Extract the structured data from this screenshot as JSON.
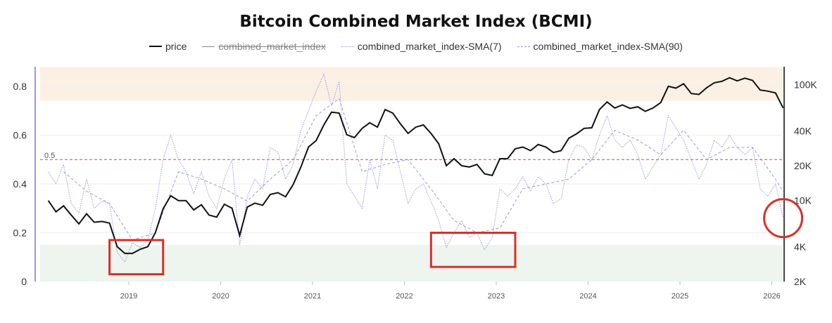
{
  "chart_data": {
    "type": "line",
    "title": "Bitcoin Combined Market Index (BCMI)",
    "legend": {
      "placement": "top",
      "entries": [
        {
          "name": "price",
          "style": "solid",
          "color": "#111111",
          "hidden": false
        },
        {
          "name": "combined_market_index",
          "style": "solid",
          "color": "#888888",
          "hidden": true
        },
        {
          "name": "combined_market_index-SMA(7)",
          "style": "dotted",
          "color": "#9b96e8",
          "hidden": false
        },
        {
          "name": "combined_market_index-SMA(90)",
          "style": "dashed",
          "color": "#9b96e8",
          "hidden": false
        }
      ]
    },
    "x_axis": {
      "ticks": [
        "2019",
        "2020",
        "2021",
        "2022",
        "2023",
        "2024",
        "2025",
        "2026"
      ],
      "range": [
        "2018-02",
        "2026-02"
      ]
    },
    "y_left": {
      "ticks": [
        "0",
        "0.2",
        "0.4",
        "0.6",
        "0.8"
      ],
      "values": [
        0,
        0.2,
        0.4,
        0.6,
        0.8
      ],
      "range": [
        0,
        0.88
      ]
    },
    "y_right": {
      "scale": "log",
      "ticks": [
        "2K",
        "4K",
        "10K",
        "20K",
        "40K",
        "100K"
      ],
      "values": [
        2000,
        4000,
        10000,
        20000,
        40000,
        100000
      ],
      "range": [
        2000,
        141000
      ]
    },
    "reference_line": {
      "value": 0.5,
      "label": "0.5",
      "color": "#c0504d",
      "style": "dashed"
    },
    "bands": [
      {
        "from": 0.74,
        "to": 0.88,
        "color": "#fbf0e3"
      },
      {
        "from": 0,
        "to": 0.15,
        "color": "#edf5ee"
      }
    ],
    "grid": true,
    "dates": [
      "2018-02",
      "2018-03",
      "2018-04",
      "2018-05",
      "2018-06",
      "2018-07",
      "2018-08",
      "2018-09",
      "2018-10",
      "2018-11",
      "2018-12",
      "2019-01",
      "2019-02",
      "2019-03",
      "2019-04",
      "2019-05",
      "2019-06",
      "2019-07",
      "2019-08",
      "2019-09",
      "2019-10",
      "2019-11",
      "2019-12",
      "2020-01",
      "2020-02",
      "2020-03",
      "2020-04",
      "2020-05",
      "2020-06",
      "2020-07",
      "2020-08",
      "2020-09",
      "2020-10",
      "2020-11",
      "2020-12",
      "2021-01",
      "2021-02",
      "2021-03",
      "2021-04",
      "2021-05",
      "2021-06",
      "2021-07",
      "2021-08",
      "2021-09",
      "2021-10",
      "2021-11",
      "2021-12",
      "2022-01",
      "2022-02",
      "2022-03",
      "2022-04",
      "2022-05",
      "2022-06",
      "2022-07",
      "2022-08",
      "2022-09",
      "2022-10",
      "2022-11",
      "2022-12",
      "2023-01",
      "2023-02",
      "2023-03",
      "2023-04",
      "2023-05",
      "2023-06",
      "2023-07",
      "2023-08",
      "2023-09",
      "2023-10",
      "2023-11",
      "2023-12",
      "2024-01",
      "2024-02",
      "2024-03",
      "2024-04",
      "2024-05",
      "2024-06",
      "2024-07",
      "2024-08",
      "2024-09",
      "2024-10",
      "2024-11",
      "2024-12",
      "2025-01",
      "2025-02",
      "2025-03",
      "2025-04",
      "2025-05",
      "2025-06",
      "2025-07",
      "2025-08",
      "2025-09",
      "2025-10",
      "2025-11",
      "2025-12",
      "2026-01",
      "2026-02"
    ],
    "price": [
      10000,
      8000,
      9000,
      7500,
      6300,
      7700,
      6500,
      6600,
      6400,
      4000,
      3500,
      3500,
      3800,
      4000,
      5300,
      8500,
      11000,
      10000,
      10000,
      8300,
      9200,
      7500,
      7200,
      9300,
      8600,
      5000,
      8800,
      9500,
      9100,
      11300,
      11700,
      10800,
      13800,
      19500,
      29000,
      33000,
      45000,
      58000,
      57000,
      37000,
      35000,
      42000,
      47000,
      43000,
      61000,
      57000,
      46000,
      38000,
      43000,
      45000,
      38000,
      31000,
      20000,
      23000,
      20000,
      19500,
      20500,
      17000,
      16500,
      23000,
      23000,
      28000,
      29000,
      27000,
      30500,
      29000,
      26000,
      27000,
      34500,
      37700,
      42000,
      42500,
      61000,
      71000,
      63000,
      67000,
      62500,
      64500,
      59000,
      63000,
      70000,
      97000,
      93500,
      102000,
      84000,
      82500,
      94000,
      104000,
      107000,
      115000,
      108000,
      114000,
      109000,
      90000,
      88000,
      85000,
      63000
    ],
    "sma7": [
      0.45,
      0.4,
      0.48,
      0.32,
      0.28,
      0.42,
      0.3,
      0.33,
      0.32,
      0.12,
      0.08,
      0.16,
      0.14,
      0.17,
      0.3,
      0.5,
      0.6,
      0.5,
      0.45,
      0.36,
      0.45,
      0.35,
      0.3,
      0.42,
      0.5,
      0.15,
      0.35,
      0.42,
      0.38,
      0.55,
      0.53,
      0.42,
      0.48,
      0.62,
      0.7,
      0.78,
      0.85,
      0.72,
      0.82,
      0.4,
      0.35,
      0.3,
      0.5,
      0.38,
      0.6,
      0.58,
      0.45,
      0.32,
      0.38,
      0.4,
      0.33,
      0.25,
      0.14,
      0.2,
      0.25,
      0.18,
      0.2,
      0.13,
      0.18,
      0.38,
      0.35,
      0.38,
      0.43,
      0.37,
      0.43,
      0.4,
      0.32,
      0.34,
      0.5,
      0.56,
      0.55,
      0.5,
      0.6,
      0.68,
      0.58,
      0.55,
      0.58,
      0.52,
      0.42,
      0.47,
      0.52,
      0.68,
      0.63,
      0.58,
      0.5,
      0.42,
      0.48,
      0.58,
      0.55,
      0.6,
      0.55,
      0.52,
      0.55,
      0.38,
      0.35,
      0.4,
      0.26
    ],
    "sma90": {
      "dates": [
        "2018-04",
        "2018-07",
        "2018-10",
        "2019-01",
        "2019-04",
        "2019-07",
        "2019-10",
        "2020-01",
        "2020-04",
        "2020-07",
        "2020-10",
        "2021-01",
        "2021-04",
        "2021-07",
        "2021-10",
        "2022-01",
        "2022-04",
        "2022-07",
        "2022-10",
        "2023-01",
        "2023-04",
        "2023-07",
        "2023-10",
        "2024-01",
        "2024-04",
        "2024-07",
        "2024-10",
        "2025-01",
        "2025-04",
        "2025-07",
        "2025-10",
        "2026-01",
        "2026-02"
      ],
      "values": [
        0.45,
        0.37,
        0.32,
        0.17,
        0.2,
        0.45,
        0.42,
        0.38,
        0.33,
        0.42,
        0.5,
        0.68,
        0.75,
        0.45,
        0.48,
        0.5,
        0.38,
        0.25,
        0.2,
        0.22,
        0.38,
        0.4,
        0.42,
        0.5,
        0.62,
        0.58,
        0.52,
        0.62,
        0.5,
        0.55,
        0.55,
        0.42,
        0.37
      ]
    },
    "annotations": [
      {
        "type": "rectangle",
        "color": "#d9302a",
        "x_range": [
          "2018-10",
          "2019-05"
        ],
        "y_range": [
          0.03,
          0.17
        ]
      },
      {
        "type": "rectangle",
        "color": "#d9302a",
        "x_range": [
          "2022-04",
          "2023-03"
        ],
        "y_range": [
          0.06,
          0.2
        ]
      },
      {
        "type": "circle",
        "color": "#d9302a",
        "center": [
          "2026-02",
          0.26
        ]
      }
    ]
  }
}
